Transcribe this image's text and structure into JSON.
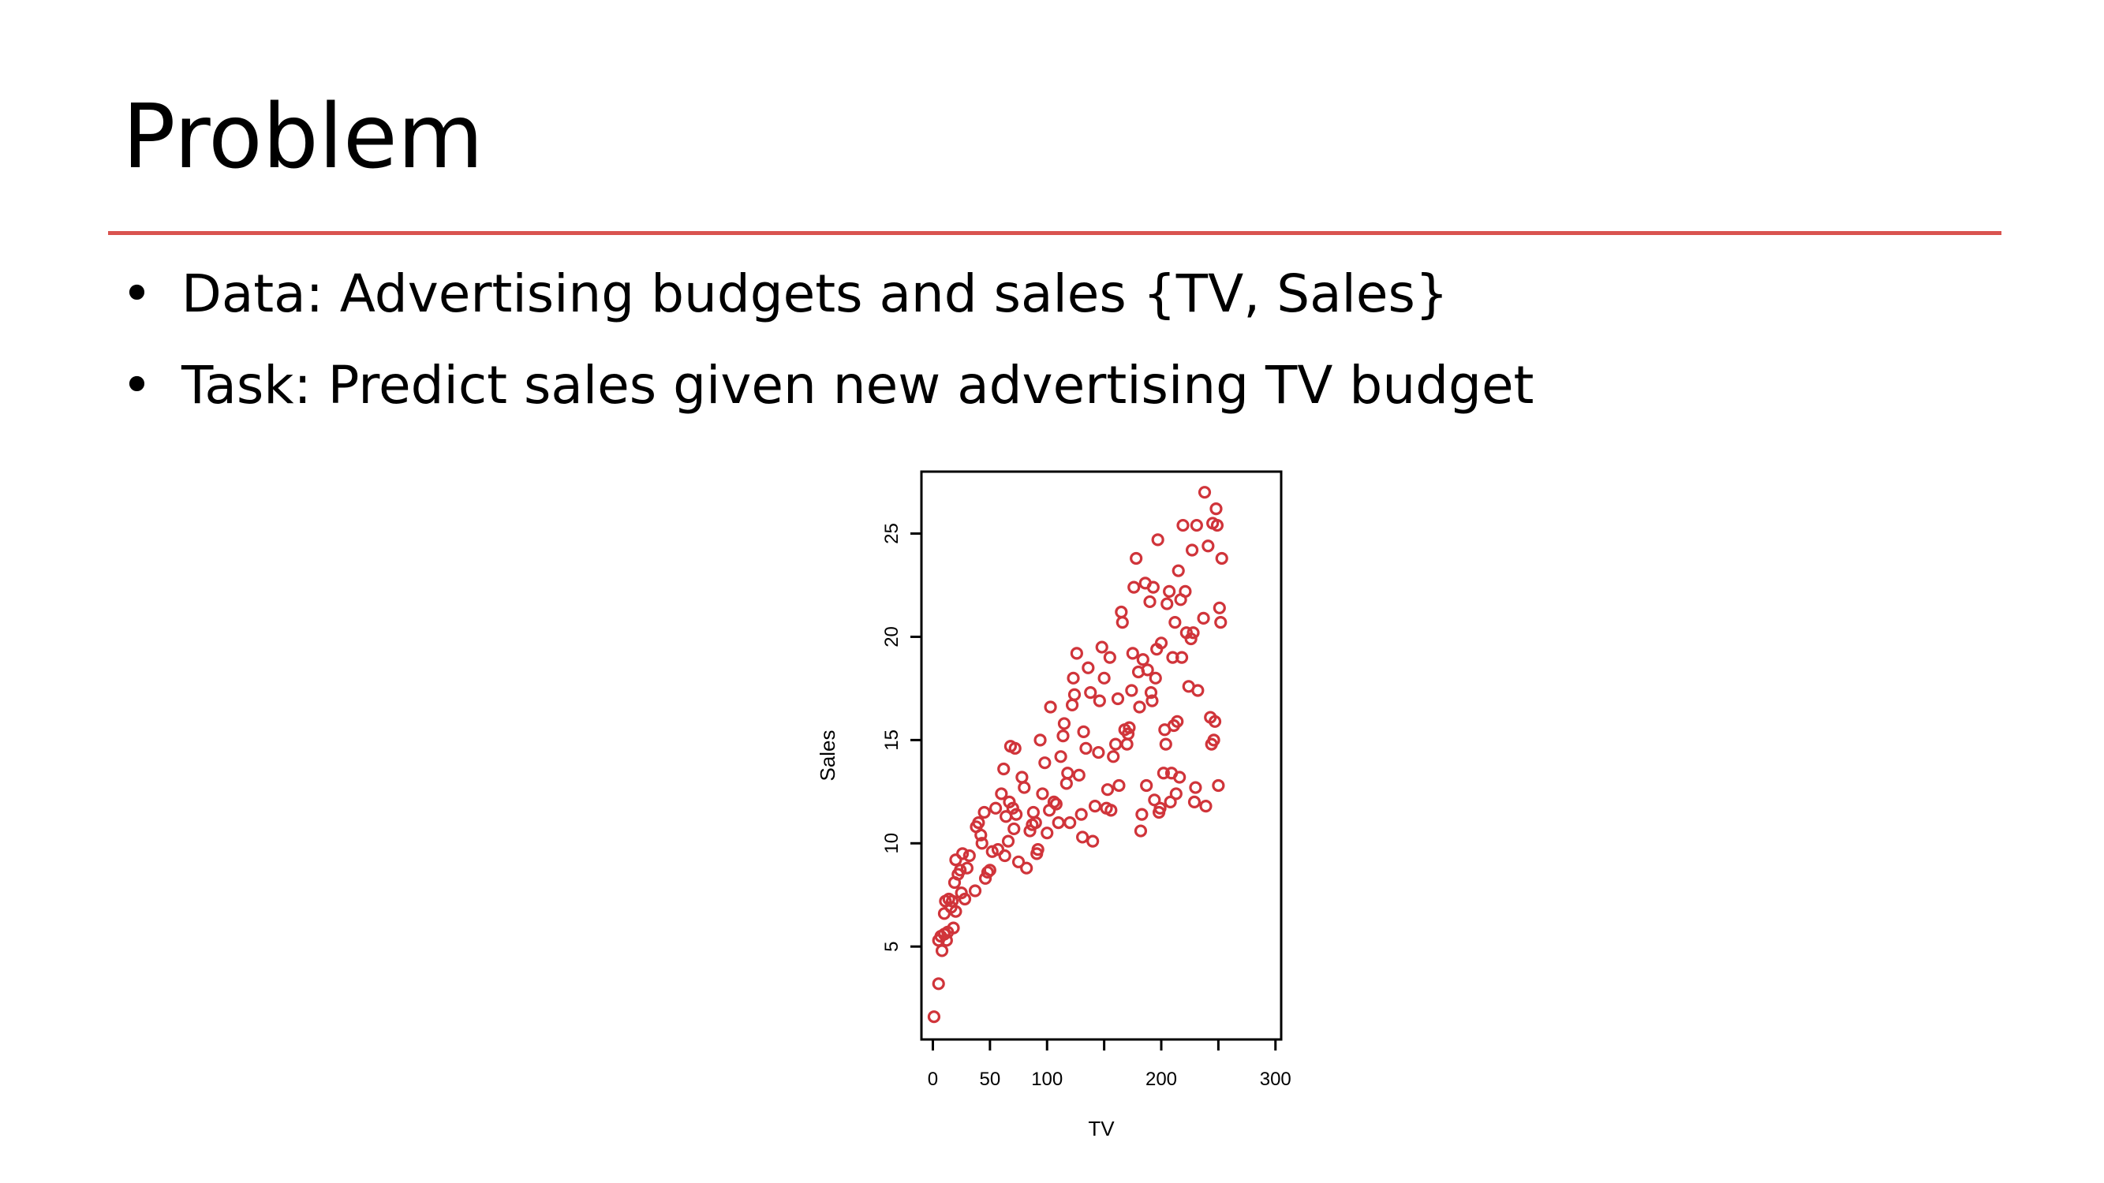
{
  "slide": {
    "title": "Problem",
    "bullets": [
      {
        "marker": "•",
        "text": "Data: Advertising budgets and sales {TV, Sales}"
      },
      {
        "marker": "•",
        "text": "Task: Predict sales given new advertising TV budget"
      }
    ],
    "accent_color": "#d9534f"
  },
  "chart_data": {
    "type": "scatter",
    "title": "",
    "xlabel": "TV",
    "ylabel": "Sales",
    "xlim": [
      -10,
      305
    ],
    "ylim": [
      0.5,
      28
    ],
    "x_ticks": [
      0,
      50,
      100,
      150,
      200,
      250,
      300
    ],
    "x_tick_labels": [
      "0",
      "50",
      "100",
      "",
      "200",
      "",
      "300"
    ],
    "y_ticks": [
      5,
      10,
      15,
      20,
      25
    ],
    "y_tick_labels": [
      "5",
      "10",
      "15",
      "20",
      "25"
    ],
    "grid": false,
    "marker_color": "#d0343a",
    "points": [
      [
        1,
        1.6
      ],
      [
        5,
        3.2
      ],
      [
        5,
        5.3
      ],
      [
        7,
        5.5
      ],
      [
        8,
        4.8
      ],
      [
        10,
        5.6
      ],
      [
        10,
        6.6
      ],
      [
        12,
        5.3
      ],
      [
        13,
        5.7
      ],
      [
        11,
        7.2
      ],
      [
        14,
        7.3
      ],
      [
        16,
        6.9
      ],
      [
        17,
        7.2
      ],
      [
        18,
        5.9
      ],
      [
        19,
        8.1
      ],
      [
        20,
        9.2
      ],
      [
        20,
        6.7
      ],
      [
        22,
        8.5
      ],
      [
        24,
        8.7
      ],
      [
        25,
        7.6
      ],
      [
        26,
        9.5
      ],
      [
        28,
        7.3
      ],
      [
        30,
        8.8
      ],
      [
        32,
        9.4
      ],
      [
        37,
        7.7
      ],
      [
        38,
        10.8
      ],
      [
        40,
        11.0
      ],
      [
        42,
        10.4
      ],
      [
        43,
        10.0
      ],
      [
        45,
        11.5
      ],
      [
        46,
        8.3
      ],
      [
        48,
        8.6
      ],
      [
        50,
        8.7
      ],
      [
        52,
        9.6
      ],
      [
        55,
        11.7
      ],
      [
        57,
        9.7
      ],
      [
        60,
        12.4
      ],
      [
        62,
        13.6
      ],
      [
        63,
        9.4
      ],
      [
        64,
        11.3
      ],
      [
        66,
        10.1
      ],
      [
        67,
        12.0
      ],
      [
        68,
        14.7
      ],
      [
        70,
        11.7
      ],
      [
        71,
        10.7
      ],
      [
        72,
        14.6
      ],
      [
        73,
        11.4
      ],
      [
        75,
        9.1
      ],
      [
        78,
        13.2
      ],
      [
        80,
        12.7
      ],
      [
        82,
        8.8
      ],
      [
        85,
        10.6
      ],
      [
        87,
        10.9
      ],
      [
        88,
        11.5
      ],
      [
        90,
        11.0
      ],
      [
        91,
        9.5
      ],
      [
        92,
        9.7
      ],
      [
        94,
        15.0
      ],
      [
        96,
        12.4
      ],
      [
        98,
        13.9
      ],
      [
        100,
        10.5
      ],
      [
        102,
        11.6
      ],
      [
        103,
        16.6
      ],
      [
        106,
        12.0
      ],
      [
        108,
        11.9
      ],
      [
        110,
        11.0
      ],
      [
        112,
        14.2
      ],
      [
        114,
        15.2
      ],
      [
        115,
        15.8
      ],
      [
        117,
        12.9
      ],
      [
        118,
        13.4
      ],
      [
        120,
        11.0
      ],
      [
        122,
        16.7
      ],
      [
        123,
        18.0
      ],
      [
        124,
        17.2
      ],
      [
        126,
        19.2
      ],
      [
        128,
        13.3
      ],
      [
        130,
        11.4
      ],
      [
        131,
        10.3
      ],
      [
        132,
        15.4
      ],
      [
        134,
        14.6
      ],
      [
        136,
        18.5
      ],
      [
        138,
        17.3
      ],
      [
        140,
        10.1
      ],
      [
        142,
        11.8
      ],
      [
        145,
        14.4
      ],
      [
        146,
        16.9
      ],
      [
        148,
        19.5
      ],
      [
        150,
        18.0
      ],
      [
        152,
        11.7
      ],
      [
        153,
        12.6
      ],
      [
        155,
        19.0
      ],
      [
        156,
        11.6
      ],
      [
        158,
        14.2
      ],
      [
        160,
        14.8
      ],
      [
        162,
        17.0
      ],
      [
        163,
        12.8
      ],
      [
        165,
        21.2
      ],
      [
        166,
        20.7
      ],
      [
        168,
        15.5
      ],
      [
        170,
        14.8
      ],
      [
        171,
        15.3
      ],
      [
        172,
        15.6
      ],
      [
        174,
        17.4
      ],
      [
        175,
        19.2
      ],
      [
        176,
        22.4
      ],
      [
        178,
        23.8
      ],
      [
        180,
        18.3
      ],
      [
        181,
        16.6
      ],
      [
        182,
        10.6
      ],
      [
        183,
        11.4
      ],
      [
        184,
        18.9
      ],
      [
        186,
        22.6
      ],
      [
        187,
        12.8
      ],
      [
        188,
        18.4
      ],
      [
        190,
        21.7
      ],
      [
        191,
        17.3
      ],
      [
        192,
        16.9
      ],
      [
        193,
        22.4
      ],
      [
        194,
        12.1
      ],
      [
        195,
        18.0
      ],
      [
        196,
        19.4
      ],
      [
        197,
        24.7
      ],
      [
        198,
        11.5
      ],
      [
        199,
        11.7
      ],
      [
        200,
        19.7
      ],
      [
        202,
        13.4
      ],
      [
        203,
        15.5
      ],
      [
        204,
        14.8
      ],
      [
        205,
        21.6
      ],
      [
        207,
        22.2
      ],
      [
        208,
        12.0
      ],
      [
        209,
        13.4
      ],
      [
        210,
        19.0
      ],
      [
        211,
        15.7
      ],
      [
        212,
        20.7
      ],
      [
        213,
        12.4
      ],
      [
        214,
        15.9
      ],
      [
        215,
        23.2
      ],
      [
        216,
        13.2
      ],
      [
        217,
        21.8
      ],
      [
        218,
        19.0
      ],
      [
        219,
        25.4
      ],
      [
        221,
        22.2
      ],
      [
        222,
        20.2
      ],
      [
        224,
        17.6
      ],
      [
        226,
        19.9
      ],
      [
        227,
        24.2
      ],
      [
        228,
        20.2
      ],
      [
        229,
        12.0
      ],
      [
        230,
        12.7
      ],
      [
        231,
        25.4
      ],
      [
        232,
        17.4
      ],
      [
        237,
        20.9
      ],
      [
        239,
        11.8
      ],
      [
        241,
        24.4
      ],
      [
        243,
        16.1
      ],
      [
        244,
        14.8
      ],
      [
        245,
        25.5
      ],
      [
        246,
        15.0
      ],
      [
        247,
        15.9
      ],
      [
        248,
        26.2
      ],
      [
        249,
        25.4
      ],
      [
        250,
        12.8
      ],
      [
        251,
        21.4
      ],
      [
        252,
        20.7
      ],
      [
        253,
        23.8
      ],
      [
        238,
        27.0
      ]
    ]
  }
}
